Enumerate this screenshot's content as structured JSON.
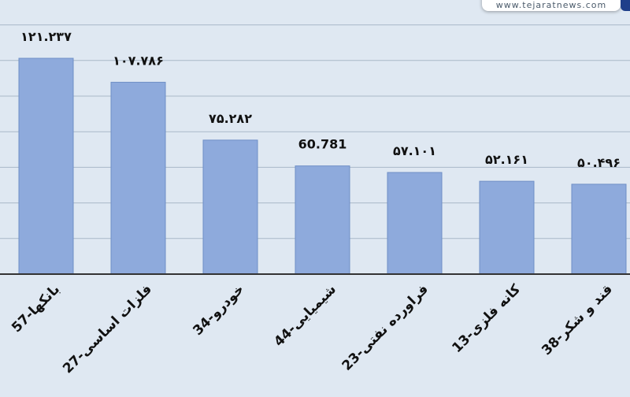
{
  "watermark": "www.tejaratnews.com",
  "colors": {
    "background": "#dfe8f2",
    "bar": "#8eaadc",
    "bar_stroke": "#6f8fc6",
    "grid": "#a9b8c8",
    "axis": "#333333",
    "text": "#111111"
  },
  "chart_data": {
    "type": "bar",
    "categories": [
      "57-بانکها",
      "27-فلزات اساسی",
      "34-خودرو",
      "44-شیمیایی",
      "23-فراورده نفتی",
      "13-کانه فلزی",
      "38-قند و شکر"
    ],
    "values": [
      121.237,
      107.786,
      75.282,
      60.781,
      57.101,
      52.161,
      50.496
    ],
    "data_labels": [
      "۱۲۱.۲۳۷",
      "۱۰۷.۷۸۶",
      "۷۵.۲۸۲",
      "60.781",
      "۵۷.۱۰۱",
      "۵۲.۱۶۱",
      "۵۰.۴۹۶"
    ],
    "ylim": [
      0,
      160
    ],
    "grid": true,
    "legend": "none",
    "title": "",
    "xlabel": "",
    "ylabel": ""
  }
}
